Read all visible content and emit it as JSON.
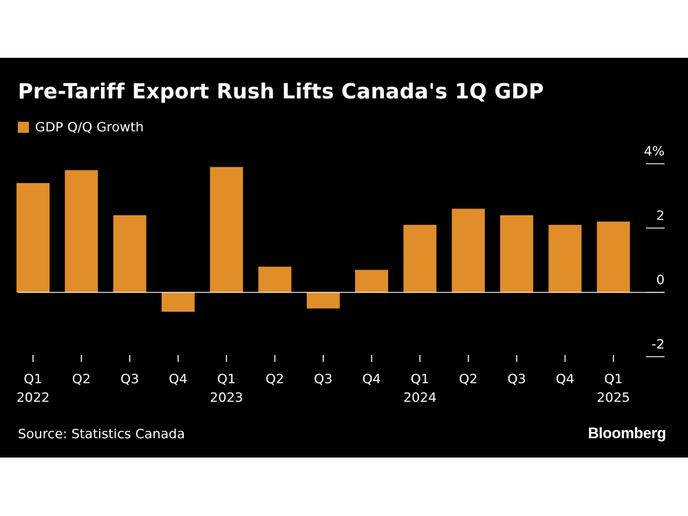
{
  "title": "Pre-Tariff Export Rush Lifts Canada's 1Q GDP",
  "source": "Source: Statistics Canada",
  "logo": "Bloomberg",
  "colors": {
    "bar": "#e08e2a",
    "background": "#000000",
    "text": "#ffffff"
  },
  "chart_data": {
    "type": "bar",
    "categories": [
      "Q1",
      "Q2",
      "Q3",
      "Q4",
      "Q1",
      "Q2",
      "Q3",
      "Q4",
      "Q1",
      "Q2",
      "Q3",
      "Q4",
      "Q1"
    ],
    "year_labels": [
      {
        "index": 0,
        "label": "2022"
      },
      {
        "index": 4,
        "label": "2023"
      },
      {
        "index": 8,
        "label": "2024"
      },
      {
        "index": 12,
        "label": "2025"
      }
    ],
    "series": [
      {
        "name": "GDP Q/Q Growth",
        "values": [
          3.4,
          3.8,
          2.4,
          -0.6,
          3.9,
          0.8,
          -0.5,
          0.7,
          2.1,
          2.6,
          2.4,
          2.1,
          2.2
        ]
      }
    ],
    "y_ticks": [
      {
        "value": 4,
        "label": "4%"
      },
      {
        "value": 2,
        "label": "2"
      },
      {
        "value": 0,
        "label": "0"
      },
      {
        "value": -2,
        "label": "-2"
      }
    ],
    "ylim": [
      -2,
      4
    ],
    "axis_position": "right",
    "legend_position": "top-left",
    "grid": false
  }
}
